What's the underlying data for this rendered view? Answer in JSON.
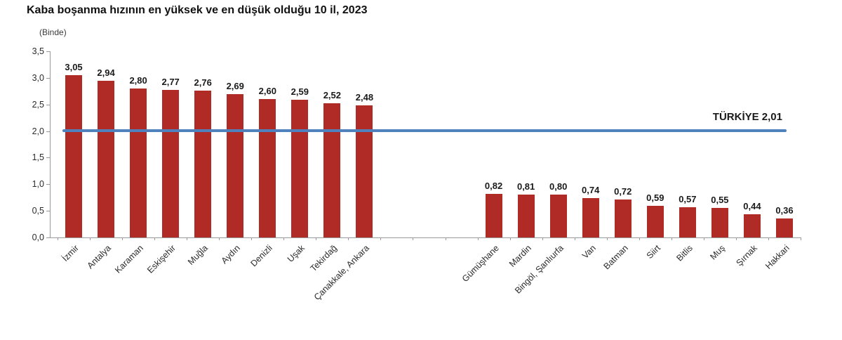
{
  "title": "Kaba boşanma hızının en yüksek ve en düşük olduğu 10 il, 2023",
  "unit_label": "(Binde)",
  "chart_data": {
    "type": "bar",
    "title": "Kaba boşanma hızının en yüksek ve en düşük olduğu 10 il, 2023",
    "ylabel": "(Binde)",
    "ylim": [
      0,
      3.5
    ],
    "ytick_labels": [
      "3,5",
      "3,0",
      "2,5",
      "2,0",
      "1,5",
      "1,0",
      "0,5",
      "0,0"
    ],
    "grid": false,
    "bar_color": "#b02b26",
    "gap_slots": 3,
    "groups": [
      {
        "categories": [
          "İzmir",
          "Antalya",
          "Karaman",
          "Eskişehir",
          "Muğla",
          "Aydın",
          "Denizli",
          "Uşak",
          "Tekirdağ",
          "Çanakkale, Ankara"
        ],
        "values": [
          3.05,
          2.94,
          2.8,
          2.77,
          2.76,
          2.69,
          2.6,
          2.59,
          2.52,
          2.48
        ],
        "value_labels": [
          "3,05",
          "2,94",
          "2,80",
          "2,77",
          "2,76",
          "2,69",
          "2,60",
          "2,59",
          "2,52",
          "2,48"
        ]
      },
      {
        "categories": [
          "Gümüşhane",
          "Mardin",
          "Bingöl, Şanlıurfa",
          "Van",
          "Batman",
          "Siirt",
          "Bitlis",
          "Muş",
          "Şırnak",
          "Hakkari"
        ],
        "values": [
          0.82,
          0.81,
          0.8,
          0.74,
          0.72,
          0.59,
          0.57,
          0.55,
          0.44,
          0.36
        ],
        "value_labels": [
          "0,82",
          "0,81",
          "0,80",
          "0,74",
          "0,72",
          "0,59",
          "0,57",
          "0,55",
          "0,44",
          "0,36"
        ]
      }
    ],
    "reference_line": {
      "label": "TÜRKİYE 2,01",
      "value": 2.01,
      "color": "#4f81bd"
    }
  }
}
